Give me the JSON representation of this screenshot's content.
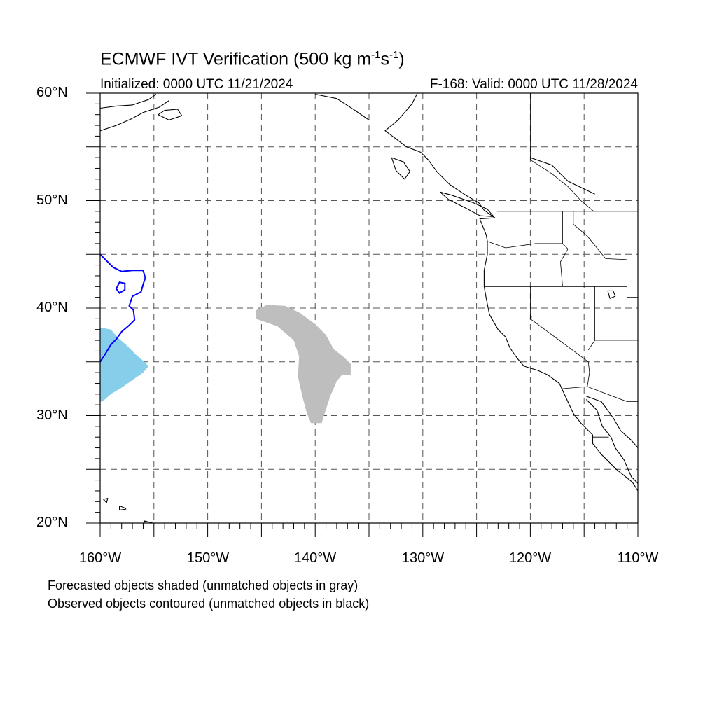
{
  "title_main": "ECMWF IVT Verification (500 kg m",
  "title_sup1": "-1",
  "title_mid": "s",
  "title_sup2": "-1",
  "title_end": ")",
  "subtitle_left": "Initialized: 0000 UTC 11/21/2024",
  "subtitle_right": "F-168: Valid: 0000 UTC 11/28/2024",
  "lat_labels": [
    "60°N",
    "50°N",
    "40°N",
    "30°N",
    "20°N"
  ],
  "lon_labels": [
    "160°W",
    "150°W",
    "140°W",
    "130°W",
    "120°W",
    "110°W"
  ],
  "notes": [
    "Forecasted objects shaded (unmatched objects in gray)",
    "Observed objects contoured (unmatched objects in black)"
  ],
  "map": {
    "lon_range": [
      -160,
      -110
    ],
    "lat_range": [
      20,
      60
    ],
    "grid_spacing_deg": 5,
    "colors": {
      "matched_forecast": "#87ceeb",
      "unmatched_forecast": "#bebebe",
      "matched_observed": "#0000ff",
      "grid": "#555555"
    },
    "forecast_objects": [
      {
        "name": "matched",
        "color_key": "matched_forecast",
        "lonlat": [
          [
            -160,
            38.2
          ],
          [
            -159,
            38
          ],
          [
            -158.3,
            37.2
          ],
          [
            -157.5,
            36.5
          ],
          [
            -156.7,
            35.7
          ],
          [
            -155.9,
            35
          ],
          [
            -155.5,
            34.6
          ],
          [
            -156,
            34
          ],
          [
            -157,
            33.3
          ],
          [
            -158,
            32.6
          ],
          [
            -159,
            32
          ],
          [
            -159.8,
            31.3
          ],
          [
            -160,
            31.3
          ]
        ]
      },
      {
        "name": "unmatched",
        "color_key": "unmatched_forecast",
        "lonlat": [
          [
            -145.5,
            39.8
          ],
          [
            -144.5,
            40.3
          ],
          [
            -142.8,
            40.2
          ],
          [
            -141.5,
            39.6
          ],
          [
            -140,
            38.5
          ],
          [
            -139,
            37.5
          ],
          [
            -138.3,
            36.2
          ],
          [
            -137.3,
            35.4
          ],
          [
            -136.7,
            34.8
          ],
          [
            -136.7,
            33.8
          ],
          [
            -137.5,
            33.8
          ],
          [
            -138,
            33.2
          ],
          [
            -138.6,
            31.8
          ],
          [
            -139,
            30.6
          ],
          [
            -139.4,
            29.3
          ],
          [
            -140.4,
            29.3
          ],
          [
            -140.8,
            30.3
          ],
          [
            -141.2,
            31.8
          ],
          [
            -141.6,
            33.6
          ],
          [
            -141.5,
            35.5
          ],
          [
            -142,
            37
          ],
          [
            -143.5,
            38.3
          ],
          [
            -145.5,
            39
          ]
        ]
      }
    ],
    "observed_objects": [
      {
        "name": "matched",
        "color_key": "matched_observed",
        "lonlat": [
          [
            -160,
            45
          ],
          [
            -159.5,
            44.5
          ],
          [
            -158.8,
            43.8
          ],
          [
            -158,
            43.4
          ],
          [
            -157,
            43.5
          ],
          [
            -156,
            43.5
          ],
          [
            -155.8,
            42.8
          ],
          [
            -156,
            42.2
          ],
          [
            -156.2,
            41.5
          ],
          [
            -157,
            41.1
          ],
          [
            -157.3,
            40.2
          ],
          [
            -156.9,
            39.8
          ],
          [
            -156.8,
            38.9
          ],
          [
            -157.3,
            38.4
          ],
          [
            -158,
            37.8
          ],
          [
            -158.5,
            37.1
          ],
          [
            -159,
            36.6
          ],
          [
            -159.6,
            35.6
          ],
          [
            -160,
            35
          ]
        ],
        "hole": [
          [
            -158.2,
            42.4
          ],
          [
            -157.7,
            42.3
          ],
          [
            -157.7,
            41.7
          ],
          [
            -158.2,
            41.4
          ],
          [
            -158.5,
            41.8
          ]
        ]
      }
    ],
    "land_outlines": [
      {
        "name": "north-america-coast",
        "lonlat": [
          [
            -130.5,
            60
          ],
          [
            -131,
            59
          ],
          [
            -132.3,
            57.5
          ],
          [
            -133.5,
            56.5
          ],
          [
            -131.5,
            55
          ],
          [
            -130.2,
            54.5
          ],
          [
            -129.5,
            53.8
          ],
          [
            -128.7,
            52.7
          ],
          [
            -127.5,
            51.5
          ],
          [
            -126,
            50.5
          ],
          [
            -124.8,
            49.8
          ],
          [
            -124.3,
            49.1
          ],
          [
            -123.3,
            48.4
          ],
          [
            -124.7,
            48.3
          ],
          [
            -124.1,
            46.8
          ],
          [
            -124,
            46.2
          ],
          [
            -124,
            45
          ],
          [
            -124.3,
            43.5
          ],
          [
            -124.3,
            42
          ],
          [
            -124.1,
            40.9
          ],
          [
            -123.8,
            39.4
          ],
          [
            -123,
            38
          ],
          [
            -122.3,
            37.3
          ],
          [
            -121.9,
            36.3
          ],
          [
            -121.2,
            35.3
          ],
          [
            -120.6,
            34.6
          ],
          [
            -119.3,
            34.2
          ],
          [
            -118.4,
            33.8
          ],
          [
            -117.3,
            33
          ],
          [
            -116.7,
            31.7
          ],
          [
            -116,
            30.2
          ],
          [
            -115.3,
            29.3
          ],
          [
            -114.2,
            28.2
          ],
          [
            -114.2,
            27.4
          ],
          [
            -113.4,
            26.4
          ],
          [
            -112,
            25
          ],
          [
            -110.5,
            23.8
          ],
          [
            -110,
            23
          ]
        ]
      },
      {
        "name": "baja-gulf-coast",
        "lonlat": [
          [
            -114.8,
            31.5
          ],
          [
            -113.8,
            30.5
          ],
          [
            -113.3,
            29
          ],
          [
            -112.5,
            28
          ],
          [
            -112.1,
            27
          ],
          [
            -111.3,
            25.9
          ],
          [
            -110.6,
            24.3
          ],
          [
            -110,
            23.7
          ]
        ]
      },
      {
        "name": "mexico-mainland-coast",
        "lonlat": [
          [
            -114.8,
            31.8
          ],
          [
            -113.4,
            31.3
          ],
          [
            -112.3,
            29.8
          ],
          [
            -111.6,
            28.6
          ],
          [
            -110.6,
            27.7
          ],
          [
            -110,
            27
          ]
        ]
      },
      {
        "name": "vancouver-island",
        "lonlat": [
          [
            -128.4,
            50.8
          ],
          [
            -127.3,
            50.5
          ],
          [
            -125.3,
            49.8
          ],
          [
            -124,
            49.2
          ],
          [
            -123.4,
            48.5
          ],
          [
            -124.7,
            48.6
          ],
          [
            -126,
            49.3
          ],
          [
            -127.6,
            50.1
          ],
          [
            -128.4,
            50.8
          ]
        ]
      },
      {
        "name": "haida-gwaii",
        "lonlat": [
          [
            -132.9,
            54
          ],
          [
            -131.8,
            53.6
          ],
          [
            -131.2,
            52.7
          ],
          [
            -131.7,
            52
          ],
          [
            -132.5,
            52.8
          ],
          [
            -132.9,
            54
          ]
        ]
      },
      {
        "name": "alaska-peninsula",
        "lonlat": [
          [
            -160,
            58.6
          ],
          [
            -158.5,
            58.8
          ],
          [
            -157,
            58.9
          ],
          [
            -155.5,
            59.4
          ],
          [
            -154.8,
            59.9
          ]
        ]
      },
      {
        "name": "alaska-south-coast",
        "lonlat": [
          [
            -160,
            56.5
          ],
          [
            -158.5,
            57
          ],
          [
            -157.1,
            57.6
          ],
          [
            -156,
            58.2
          ],
          [
            -154.5,
            58.7
          ],
          [
            -153.6,
            59.3
          ]
        ]
      },
      {
        "name": "kodiak-island",
        "lonlat": [
          [
            -154.6,
            58
          ],
          [
            -153.6,
            57.5
          ],
          [
            -152.4,
            57.9
          ],
          [
            -152.8,
            58.5
          ],
          [
            -154,
            58.4
          ],
          [
            -154.6,
            58
          ]
        ]
      },
      {
        "name": "hawaii-kauai",
        "lonlat": [
          [
            -159.7,
            22.2
          ],
          [
            -159.3,
            22.3
          ],
          [
            -159.4,
            21.9
          ],
          [
            -159.7,
            22.2
          ]
        ]
      },
      {
        "name": "hawaii-oahu-maui",
        "lonlat": [
          [
            -158.2,
            21.6
          ],
          [
            -157.7,
            21.4
          ],
          [
            -157.6,
            21.3
          ],
          [
            -158.2,
            21.2
          ],
          [
            -158.2,
            21.6
          ]
        ]
      },
      {
        "name": "hawaii-big-island",
        "lonlat": [
          [
            -155.9,
            20.2
          ],
          [
            -155.1,
            20
          ],
          [
            -155.2,
            19.5
          ],
          [
            -155.9,
            19.9
          ],
          [
            -155.9,
            20.2
          ]
        ]
      },
      {
        "name": "southeast-alaska-coast",
        "lonlat": [
          [
            -140,
            59.9
          ],
          [
            -138,
            59.5
          ],
          [
            -136.3,
            58.4
          ],
          [
            -135,
            57.5
          ]
        ]
      },
      {
        "name": "inland-lake-shore",
        "lonlat": [
          [
            -120,
            54
          ],
          [
            -118,
            53.3
          ],
          [
            -116.5,
            51.8
          ],
          [
            -114,
            50.6
          ]
        ]
      },
      {
        "name": "great-salt-lake",
        "lonlat": [
          [
            -112.8,
            41.6
          ],
          [
            -112.3,
            41.6
          ],
          [
            -112.1,
            41.1
          ],
          [
            -112.6,
            40.9
          ],
          [
            -112.8,
            41.6
          ]
        ]
      },
      {
        "name": "lake-tahoe",
        "lonlat": [
          [
            -120,
            39.1
          ],
          [
            -119.9,
            39.2
          ],
          [
            -119.95,
            38.95
          ],
          [
            -120,
            39.1
          ]
        ]
      }
    ],
    "borders": [
      {
        "name": "us-canada",
        "lonlat": [
          [
            -123.1,
            49
          ],
          [
            -110,
            49
          ]
        ]
      },
      {
        "name": "bc-alberta",
        "lonlat": [
          [
            -120,
            60
          ],
          [
            -120,
            53.8
          ],
          [
            -118,
            52.5
          ],
          [
            -116.5,
            51.3
          ],
          [
            -115.3,
            50
          ],
          [
            -114.1,
            49
          ]
        ]
      },
      {
        "name": "washington-oregon",
        "lonlat": [
          [
            -124,
            46.2
          ],
          [
            -122.3,
            45.6
          ],
          [
            -119.5,
            46
          ],
          [
            -117,
            46
          ]
        ]
      },
      {
        "name": "washington-idaho",
        "lonlat": [
          [
            -117,
            49
          ],
          [
            -117,
            46
          ],
          [
            -116.5,
            45.5
          ]
        ]
      },
      {
        "name": "idaho-montana",
        "lonlat": [
          [
            -116,
            49
          ],
          [
            -116,
            47.8
          ],
          [
            -114.7,
            46.7
          ],
          [
            -113,
            44.6
          ],
          [
            -111,
            44.5
          ]
        ]
      },
      {
        "name": "oregon-idaho",
        "lonlat": [
          [
            -116.5,
            45.5
          ],
          [
            -117.2,
            44.3
          ],
          [
            -117,
            42
          ]
        ]
      },
      {
        "name": "california-oregon-north",
        "lonlat": [
          [
            -124.2,
            42
          ],
          [
            -111,
            42
          ]
        ]
      },
      {
        "name": "california-nevada",
        "lonlat": [
          [
            -120,
            42
          ],
          [
            -120,
            39
          ],
          [
            -114.6,
            35
          ]
        ]
      },
      {
        "name": "nevada-utah",
        "lonlat": [
          [
            -114,
            42
          ],
          [
            -114,
            37
          ],
          [
            -114.6,
            36.1
          ]
        ]
      },
      {
        "name": "utah-arizona",
        "lonlat": [
          [
            -114,
            37
          ],
          [
            -110,
            37
          ]
        ]
      },
      {
        "name": "wyoming-west",
        "lonlat": [
          [
            -111,
            44.5
          ],
          [
            -111,
            41
          ],
          [
            -110,
            41
          ]
        ]
      },
      {
        "name": "us-mexico",
        "lonlat": [
          [
            -117.1,
            32.5
          ],
          [
            -114.7,
            32.7
          ],
          [
            -111,
            31.3
          ],
          [
            -110,
            31.3
          ]
        ]
      },
      {
        "name": "california-arizona",
        "lonlat": [
          [
            -114.6,
            35
          ],
          [
            -114.5,
            34
          ],
          [
            -114.7,
            32.7
          ]
        ]
      },
      {
        "name": "baja-states",
        "lonlat": [
          [
            -114.2,
            28
          ],
          [
            -112.7,
            28
          ]
        ]
      }
    ]
  }
}
